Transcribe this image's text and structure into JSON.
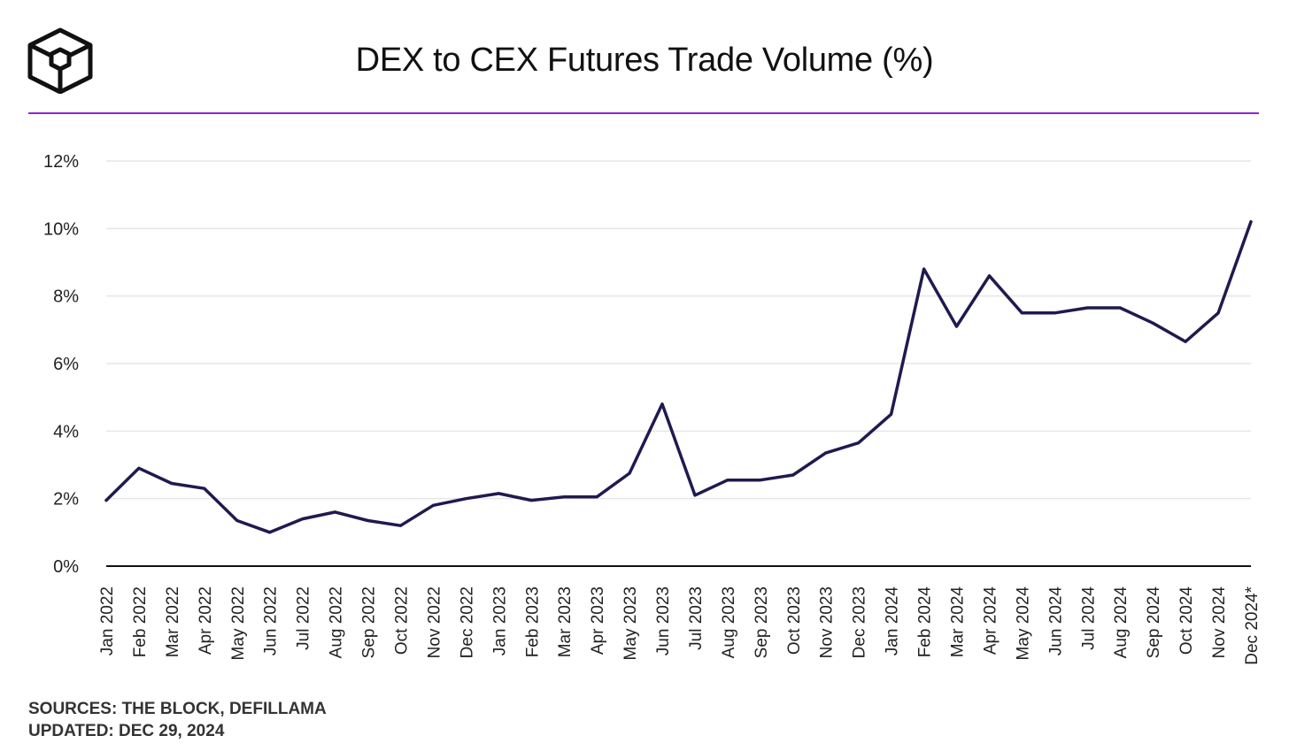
{
  "colors": {
    "line": "#1f1a4f",
    "divider": "#8e24d6",
    "grid": "#e6e6e6",
    "axis": "#111111"
  },
  "logo": {
    "icon": "cube-logo-icon"
  },
  "footer": {
    "sources": "SOURCES: THE BLOCK, DEFILLAMA",
    "updated": "UPDATED: DEC 29, 2024"
  },
  "chart_data": {
    "type": "line",
    "title": "DEX to CEX Futures Trade Volume (%)",
    "xlabel": "",
    "ylabel": "",
    "ylim": [
      0,
      12
    ],
    "yticks": [
      "0%",
      "2%",
      "4%",
      "6%",
      "8%",
      "10%",
      "12%"
    ],
    "grid": true,
    "categories": [
      "Jan 2022",
      "Feb 2022",
      "Mar 2022",
      "Apr 2022",
      "May 2022",
      "Jun 2022",
      "Jul 2022",
      "Aug 2022",
      "Sep 2022",
      "Oct 2022",
      "Nov 2022",
      "Dec 2022",
      "Jan 2023",
      "Feb 2023",
      "Mar 2023",
      "Apr 2023",
      "May 2023",
      "Jun 2023",
      "Jul 2023",
      "Aug 2023",
      "Sep 2023",
      "Oct 2023",
      "Nov 2023",
      "Dec 2023",
      "Jan 2024",
      "Feb 2024",
      "Mar 2024",
      "Apr 2024",
      "May 2024",
      "Jun 2024",
      "Jul 2024",
      "Aug 2024",
      "Sep 2024",
      "Oct 2024",
      "Nov 2024",
      "Dec 2024*"
    ],
    "series": [
      {
        "name": "DEX to CEX Futures Trade Volume (%)",
        "values": [
          1.95,
          2.9,
          2.45,
          2.3,
          1.35,
          1.0,
          1.4,
          1.6,
          1.35,
          1.2,
          1.8,
          2.0,
          2.15,
          1.95,
          2.05,
          2.05,
          2.75,
          4.8,
          2.1,
          2.55,
          2.55,
          2.7,
          3.35,
          3.65,
          4.5,
          8.8,
          7.1,
          8.6,
          7.5,
          7.5,
          7.65,
          7.65,
          7.2,
          6.65,
          7.5,
          10.2
        ]
      }
    ]
  }
}
